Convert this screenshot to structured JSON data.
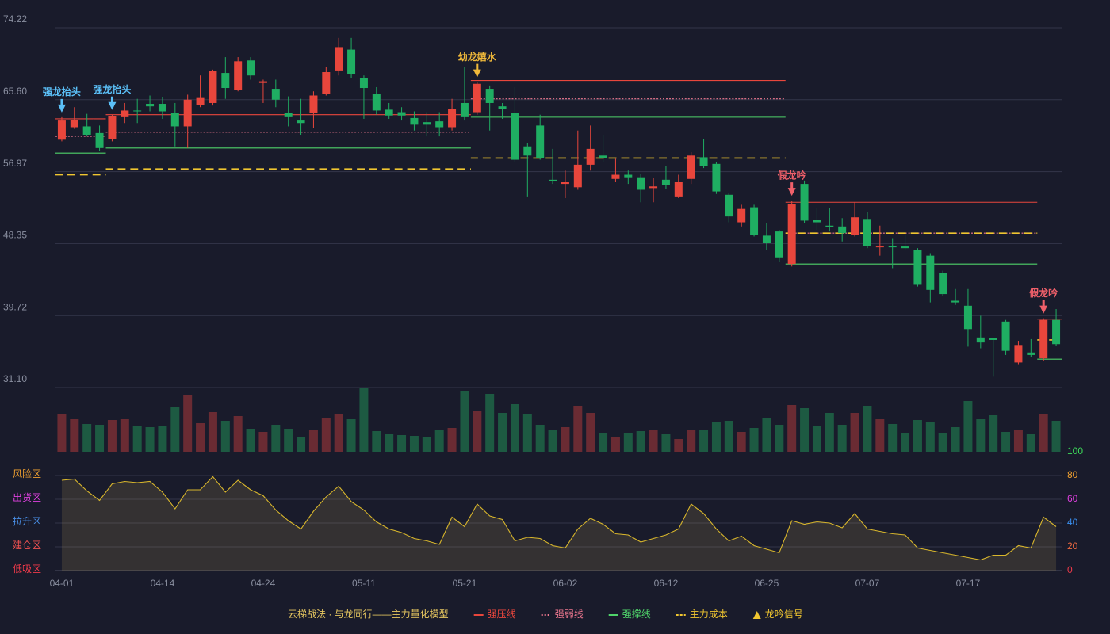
{
  "chart_data": [
    {
      "type": "candlestick",
      "ylim": [
        31.1,
        74.22
      ],
      "yticks": [
        74.22,
        {
          "value": 65.6,
          "label": "65.60"
        },
        56.97,
        48.35,
        39.72,
        {
          "value": 31.1,
          "label": "31.10"
        }
      ],
      "grid": true,
      "up_color": "#e8463c",
      "down_color": "#1fae62",
      "open": [
        60.8,
        62.3,
        62.4,
        61.6,
        60.9,
        63.5,
        64.3,
        65.1,
        65.1,
        64.0,
        62.4,
        65.0,
        65.2,
        68.8,
        66.8,
        70.3,
        67.6,
        66.9,
        64.0,
        63.1,
        64.0,
        66.3,
        69.1,
        71.6,
        68.2,
        66.3,
        64.4,
        64.1,
        63.4,
        62.9,
        63.0,
        62.3,
        65.2,
        64.1,
        66.9,
        64.8,
        64.0,
        60.0,
        62.5,
        56.0,
        55.5,
        55.1,
        57.8,
        58.9,
        56.1,
        56.6,
        56.3,
        55.0,
        56.0,
        54.0,
        56.1,
        58.7,
        57.9,
        54.2,
        50.9,
        52.7,
        49.3,
        49.8,
        45.9,
        55.5,
        51.2,
        50.5,
        50.4,
        49.4,
        51.3,
        47.9,
        48.1,
        48.0,
        47.6,
        46.9,
        44.8,
        41.5,
        40.9,
        37.1,
        37.0,
        39.0,
        34.1,
        35.3,
        34.6,
        39.2
      ],
      "high": [
        63.5,
        64.7,
        63.9,
        62.5,
        63.8,
        65.2,
        65.7,
        66.1,
        65.9,
        65.2,
        66.2,
        68.5,
        69.2,
        70.7,
        70.7,
        70.7,
        68.0,
        68.0,
        66.0,
        65.7,
        66.6,
        69.5,
        73.0,
        73.0,
        68.5,
        67.1,
        65.2,
        64.7,
        64.2,
        64.1,
        64.1,
        65.7,
        69.5,
        67.7,
        67.3,
        65.2,
        67.1,
        60.4,
        63.8,
        59.7,
        57.1,
        61.9,
        62.5,
        61.4,
        58.5,
        57.1,
        56.7,
        56.2,
        57.6,
        56.6,
        59.3,
        60.9,
        58.1,
        54.4,
        53.0,
        53.0,
        50.8,
        50.0,
        53.5,
        55.9,
        52.6,
        52.6,
        51.4,
        53.3,
        52.1,
        50.5,
        49.0,
        49.5,
        47.8,
        47.2,
        45.1,
        42.9,
        42.9,
        39.7,
        37.0,
        39.2,
        36.7,
        36.9,
        39.4,
        40.5
      ],
      "low": [
        60.6,
        62.1,
        61.2,
        59.5,
        60.6,
        62.8,
        62.8,
        64.2,
        63.3,
        60.0,
        59.8,
        64.7,
        64.9,
        65.7,
        66.6,
        68.0,
        65.2,
        64.7,
        62.4,
        61.4,
        62.2,
        66.1,
        68.5,
        68.2,
        63.3,
        63.8,
        63.3,
        63.1,
        61.9,
        61.2,
        61.2,
        61.9,
        63.1,
        63.8,
        61.9,
        63.3,
        58.1,
        54.0,
        58.4,
        55.5,
        53.8,
        54.8,
        57.1,
        58.1,
        55.7,
        55.5,
        53.3,
        53.3,
        54.9,
        53.8,
        55.5,
        57.4,
        54.3,
        50.9,
        50.4,
        49.2,
        47.6,
        46.2,
        45.6,
        50.8,
        50.0,
        49.8,
        48.6,
        49.2,
        47.8,
        46.9,
        45.4,
        47.6,
        43.2,
        41.3,
        42.1,
        41.0,
        36.0,
        35.8,
        32.4,
        35.0,
        33.9,
        34.8,
        34.3,
        36.1
      ],
      "close": [
        63.1,
        63.2,
        61.4,
        59.8,
        63.6,
        64.3,
        64.2,
        64.8,
        64.2,
        62.4,
        65.6,
        65.8,
        69.0,
        67.0,
        70.2,
        68.5,
        67.8,
        65.6,
        63.5,
        62.8,
        66.1,
        68.9,
        71.9,
        68.7,
        67.0,
        64.3,
        63.7,
        63.7,
        62.6,
        62.6,
        62.3,
        64.5,
        63.5,
        67.5,
        65.2,
        64.5,
        58.4,
        58.9,
        58.6,
        55.8,
        55.7,
        57.8,
        59.7,
        58.6,
        56.6,
        56.3,
        54.8,
        55.2,
        55.4,
        55.7,
        58.9,
        57.6,
        54.6,
        51.6,
        52.5,
        49.4,
        48.4,
        46.7,
        53.1,
        51.1,
        50.9,
        50.3,
        49.6,
        51.5,
        48.1,
        48.0,
        47.9,
        47.8,
        43.5,
        42.8,
        42.3,
        41.3,
        38.1,
        36.5,
        36.8,
        35.5,
        36.2,
        35.0,
        39.2,
        36.3
      ],
      "caption": "云梯战法 · 与龙同行——主力量化模型",
      "caption_color": "#e8c860",
      "series": [
        {
          "name": "强压线",
          "color": "#e8463c",
          "style": "solid",
          "values": [
            63.3,
            63.3,
            63.3,
            63.3,
            63.8,
            63.8,
            63.8,
            63.8,
            63.8,
            63.8,
            63.8,
            63.8,
            63.8,
            63.8,
            63.8,
            63.8,
            63.8,
            63.8,
            63.8,
            63.8,
            63.8,
            63.8,
            63.8,
            63.8,
            63.8,
            63.8,
            63.8,
            63.8,
            63.8,
            63.8,
            63.8,
            63.8,
            63.8,
            67.9,
            67.9,
            67.9,
            67.9,
            67.9,
            67.9,
            67.9,
            67.9,
            67.9,
            67.9,
            67.9,
            67.9,
            67.9,
            67.9,
            67.9,
            67.9,
            67.9,
            67.9,
            67.9,
            67.9,
            67.9,
            67.9,
            67.9,
            67.9,
            67.9,
            53.3,
            53.3,
            53.3,
            53.3,
            53.3,
            53.3,
            53.3,
            53.3,
            53.3,
            53.3,
            53.3,
            53.3,
            53.3,
            53.3,
            53.3,
            53.3,
            53.3,
            53.3,
            53.3,
            53.3,
            39.3,
            39.3
          ]
        },
        {
          "name": "强弱线",
          "color": "#f07890",
          "style": "dotted",
          "values": [
            61.2,
            61.2,
            61.2,
            61.2,
            61.7,
            61.7,
            61.7,
            61.7,
            61.7,
            61.7,
            61.7,
            61.7,
            61.7,
            61.7,
            61.7,
            61.7,
            61.7,
            61.7,
            61.7,
            61.7,
            61.7,
            61.7,
            61.7,
            61.7,
            61.7,
            61.7,
            61.7,
            61.7,
            61.7,
            61.7,
            61.7,
            61.7,
            61.7,
            65.7,
            65.7,
            65.7,
            65.7,
            65.7,
            65.7,
            65.7,
            65.7,
            65.7,
            65.7,
            65.7,
            65.7,
            65.7,
            65.7,
            65.7,
            65.7,
            65.7,
            65.7,
            65.7,
            65.7,
            65.7,
            65.7,
            65.7,
            65.7,
            65.7,
            49.6,
            49.6,
            49.6,
            49.6,
            49.6,
            49.6,
            49.6,
            49.6,
            49.6,
            49.6,
            49.6,
            49.6,
            49.6,
            49.6,
            49.6,
            49.6,
            49.6,
            49.6,
            49.6,
            49.6,
            null,
            null
          ]
        },
        {
          "name": "强撑线",
          "color": "#4fd36a",
          "style": "solid",
          "values": [
            59.2,
            59.2,
            59.2,
            59.2,
            59.8,
            59.8,
            59.8,
            59.8,
            59.8,
            59.8,
            59.8,
            59.8,
            59.8,
            59.8,
            59.8,
            59.8,
            59.8,
            59.8,
            59.8,
            59.8,
            59.8,
            59.8,
            59.8,
            59.8,
            59.8,
            59.8,
            59.8,
            59.8,
            59.8,
            59.8,
            59.8,
            59.8,
            59.8,
            63.5,
            63.5,
            63.5,
            63.5,
            63.5,
            63.5,
            63.5,
            63.5,
            63.5,
            63.5,
            63.5,
            63.5,
            63.5,
            63.5,
            63.5,
            63.5,
            63.5,
            63.5,
            63.5,
            63.5,
            63.5,
            63.5,
            63.5,
            63.5,
            63.5,
            45.9,
            45.9,
            45.9,
            45.9,
            45.9,
            45.9,
            45.9,
            45.9,
            45.9,
            45.9,
            45.9,
            45.9,
            45.9,
            45.9,
            45.9,
            45.9,
            45.9,
            45.9,
            45.9,
            45.9,
            34.5,
            34.5
          ]
        },
        {
          "name": "主力成本",
          "color": "#f0c630",
          "style": "dashed",
          "values": [
            56.6,
            56.6,
            56.6,
            56.6,
            57.3,
            57.3,
            57.3,
            57.3,
            57.3,
            57.3,
            57.3,
            57.3,
            57.3,
            57.3,
            57.3,
            57.3,
            57.3,
            57.3,
            57.3,
            57.3,
            57.3,
            57.3,
            57.3,
            57.3,
            57.3,
            57.3,
            57.3,
            57.3,
            57.3,
            57.3,
            57.3,
            57.3,
            57.3,
            58.6,
            58.6,
            58.6,
            58.6,
            58.6,
            58.6,
            58.6,
            58.6,
            58.6,
            58.6,
            58.6,
            58.6,
            58.6,
            58.6,
            58.6,
            58.6,
            58.6,
            58.6,
            58.6,
            58.6,
            58.6,
            58.6,
            58.6,
            58.6,
            58.6,
            49.6,
            49.6,
            49.6,
            49.6,
            49.6,
            49.6,
            49.6,
            49.6,
            49.6,
            49.6,
            49.6,
            49.6,
            49.6,
            49.6,
            49.6,
            49.6,
            49.6,
            49.6,
            49.6,
            49.6,
            36.8,
            36.8
          ]
        }
      ],
      "signal_legend": {
        "label": "龙吟信号",
        "color": "#f0c630"
      },
      "signals": [
        {
          "label": "强龙抬头",
          "color": "#5bc0f8"
        },
        null,
        null,
        null,
        {
          "label": "强龙抬头",
          "color": "#5bc0f8"
        },
        null,
        null,
        null,
        null,
        null,
        null,
        null,
        null,
        null,
        null,
        null,
        null,
        null,
        null,
        null,
        null,
        null,
        null,
        null,
        null,
        null,
        null,
        null,
        null,
        null,
        null,
        null,
        null,
        {
          "label": "幼龙嬉水",
          "color": "#f0b93a"
        },
        null,
        null,
        null,
        null,
        null,
        null,
        null,
        null,
        null,
        null,
        null,
        null,
        null,
        null,
        null,
        null,
        null,
        null,
        null,
        null,
        null,
        null,
        null,
        null,
        {
          "label": "假龙吟",
          "color": "#f0606a"
        },
        null,
        null,
        null,
        null,
        null,
        null,
        null,
        null,
        null,
        null,
        null,
        null,
        null,
        null,
        null,
        null,
        null,
        null,
        null,
        {
          "label": "假龙吟",
          "color": "#f0606a"
        },
        null
      ]
    },
    {
      "type": "bar",
      "up_color": "#6a2b33",
      "down_color": "#1d5a42",
      "values": [
        47,
        41,
        35,
        34,
        40,
        41,
        32,
        31,
        33,
        56,
        71,
        36,
        50,
        39,
        45,
        29,
        25,
        34,
        29,
        18,
        28,
        42,
        47,
        41,
        81,
        26,
        22,
        21,
        20,
        18,
        27,
        30,
        76,
        52,
        73,
        49,
        60,
        48,
        34,
        27,
        31,
        58,
        49,
        23,
        18,
        23,
        26,
        27,
        22,
        16,
        28,
        28,
        38,
        39,
        25,
        30,
        42,
        34,
        59,
        55,
        32,
        49,
        34,
        49,
        58,
        41,
        35,
        24,
        40,
        37,
        24,
        31,
        64,
        41,
        46,
        25,
        27,
        22,
        47,
        39
      ]
    },
    {
      "type": "line",
      "categories": [
        "04-01",
        null,
        null,
        null,
        null,
        null,
        null,
        null,
        "04-14",
        null,
        null,
        null,
        null,
        null,
        null,
        null,
        "04-24",
        null,
        null,
        null,
        null,
        null,
        null,
        null,
        "05-11",
        null,
        null,
        null,
        null,
        null,
        null,
        null,
        "05-21",
        null,
        null,
        null,
        null,
        null,
        null,
        null,
        "06-02",
        null,
        null,
        null,
        null,
        null,
        null,
        null,
        "06-12",
        null,
        null,
        null,
        null,
        null,
        null,
        null,
        "06-25",
        null,
        null,
        null,
        null,
        null,
        null,
        null,
        "07-07",
        null,
        null,
        null,
        null,
        null,
        null,
        null,
        "07-17",
        null,
        null,
        null,
        null,
        null,
        null,
        null
      ],
      "values": [
        76,
        77,
        67,
        59,
        73,
        75,
        74,
        75,
        66,
        52,
        68,
        68,
        79,
        66,
        76,
        68,
        63,
        51,
        42,
        35,
        50,
        62,
        71,
        58,
        51,
        41,
        35,
        32,
        27,
        25,
        22,
        45,
        37,
        56,
        46,
        43,
        25,
        28,
        27,
        21,
        19,
        35,
        44,
        39,
        31,
        30,
        24,
        27,
        30,
        35,
        56,
        48,
        35,
        25,
        29,
        21,
        18,
        15,
        42,
        39,
        41,
        40,
        36,
        48,
        35,
        33,
        31,
        30,
        19,
        17,
        15,
        13,
        11,
        9,
        13,
        13,
        21,
        19,
        45,
        37
      ],
      "color": "#d8b62c",
      "ylim": [
        0,
        100
      ],
      "yticks": [
        0,
        20,
        40,
        60,
        80,
        100
      ],
      "ytick_colors": [
        "#f03a4a",
        "#f06a40",
        "#3a8ff0",
        "#e040e0",
        "#f0a030",
        "#3ddc5a"
      ],
      "grid": true,
      "zones": [
        {
          "value": 80,
          "label": "风险区",
          "color": "#f0a030"
        },
        {
          "value": 60,
          "label": "出货区",
          "color": "#e040e0"
        },
        {
          "value": 40,
          "label": "拉升区",
          "color": "#4a90e8"
        },
        {
          "value": 20,
          "label": "建仓区",
          "color": "#f05050"
        },
        {
          "value": 0,
          "label": "低吸区",
          "color": "#f03a4a"
        }
      ]
    }
  ]
}
